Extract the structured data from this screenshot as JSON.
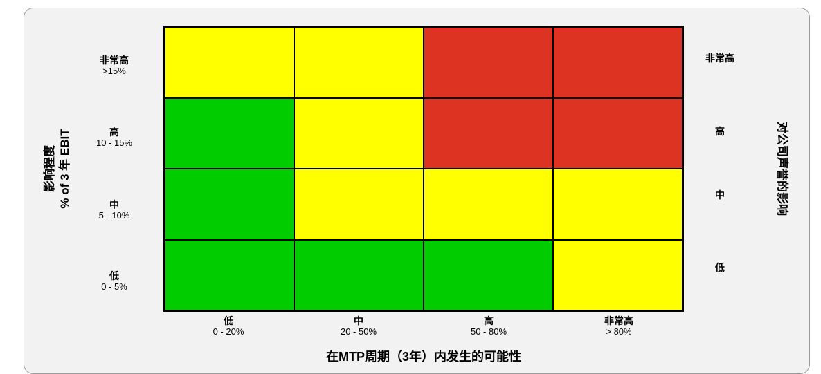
{
  "colors": {
    "green": "#00cc00",
    "yellow": "#ffff00",
    "red": "#dd3322"
  },
  "y_axis": {
    "title_line1": "影响程度",
    "title_line2": "% of 3 年 EBIT",
    "levels": [
      {
        "name": "非常高",
        "range": ">15%"
      },
      {
        "name": "高",
        "range": "10 - 15%"
      },
      {
        "name": "中",
        "range": "5 - 10%"
      },
      {
        "name": "低",
        "range": "0 - 5%"
      }
    ]
  },
  "x_axis": {
    "title": "在MTP周期（3年）内发生的可能性",
    "levels": [
      {
        "name": "低",
        "range": "0 - 20%"
      },
      {
        "name": "中",
        "range": "20 - 50%"
      },
      {
        "name": "高",
        "range": "50 - 80%"
      },
      {
        "name": "非常高",
        "range": "> 80%"
      }
    ]
  },
  "right_axis": {
    "title": "对公司声誉的影响",
    "levels": [
      "非常高",
      "高",
      "中",
      "低"
    ]
  },
  "matrix": [
    [
      "yellow",
      "yellow",
      "red",
      "red"
    ],
    [
      "green",
      "yellow",
      "red",
      "red"
    ],
    [
      "green",
      "yellow",
      "yellow",
      "yellow"
    ],
    [
      "green",
      "green",
      "green",
      "yellow"
    ]
  ]
}
